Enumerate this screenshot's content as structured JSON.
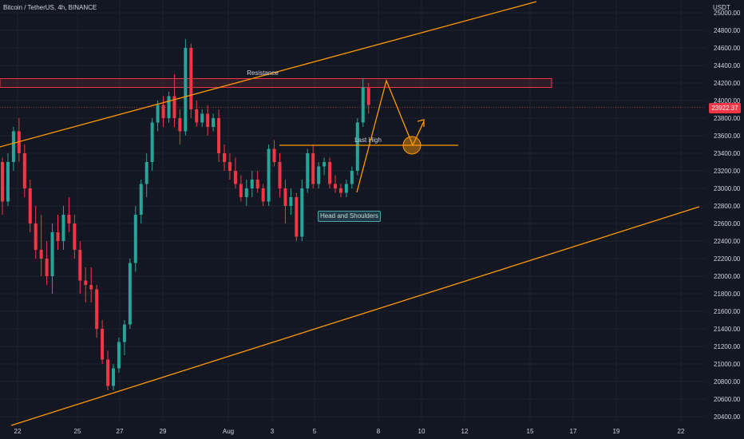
{
  "header": {
    "symbol": "Bitcoin / TetherUS, 4h, BINANCE",
    "currency": "USDT"
  },
  "current_price": "23922.37",
  "colors": {
    "background": "#131722",
    "up": "#26a69a",
    "down": "#f23645",
    "drawing": "#ff9800",
    "resistance": "#f23645"
  },
  "annotations": {
    "resistance": "Resistance",
    "last_high": "Last High",
    "pattern": "Head and Shoulders"
  },
  "chart_data": {
    "type": "candlestick",
    "y_range": [
      20300,
      25100
    ],
    "y_ticks": [
      25000,
      24800,
      24600,
      24400,
      24200,
      24000,
      23800,
      23600,
      23400,
      23200,
      23000,
      22800,
      22600,
      22400,
      22200,
      22000,
      21800,
      21600,
      21400,
      21200,
      21000,
      20800,
      20600,
      20400
    ],
    "x_ticks": [
      "22",
      "25",
      "27",
      "29",
      "Aug",
      "3",
      "5",
      "8",
      "10",
      "12",
      "15",
      "17",
      "19",
      "22"
    ],
    "resistance_zone": [
      24150,
      24250
    ],
    "last_high_level": 23490,
    "current_price": 23922.37,
    "candles": [
      [
        23300,
        23350,
        22700,
        22850
      ],
      [
        22850,
        23400,
        22800,
        23300
      ],
      [
        23300,
        23700,
        23200,
        23650
      ],
      [
        23650,
        23800,
        23300,
        23400
      ],
      [
        23400,
        23500,
        22900,
        23000
      ],
      [
        23000,
        23100,
        22500,
        22600
      ],
      [
        22600,
        22800,
        22200,
        22300
      ],
      [
        22300,
        22700,
        22000,
        22200
      ],
      [
        22200,
        22400,
        21900,
        22000
      ],
      [
        22000,
        22600,
        21800,
        22500
      ],
      [
        22500,
        22700,
        22300,
        22400
      ],
      [
        22400,
        22800,
        22300,
        22700
      ],
      [
        22700,
        22900,
        22500,
        22600
      ],
      [
        22600,
        22700,
        22200,
        22300
      ],
      [
        22300,
        22400,
        21800,
        21950
      ],
      [
        21950,
        22100,
        21700,
        21900
      ],
      [
        21900,
        22100,
        21700,
        21850
      ],
      [
        21850,
        21900,
        21300,
        21400
      ],
      [
        21400,
        21500,
        21000,
        21050
      ],
      [
        21050,
        21150,
        20700,
        20750
      ],
      [
        20750,
        21000,
        20700,
        20950
      ],
      [
        20950,
        21300,
        20900,
        21250
      ],
      [
        21250,
        21500,
        21100,
        21450
      ],
      [
        21450,
        22200,
        21400,
        22150
      ],
      [
        22150,
        22800,
        22050,
        22700
      ],
      [
        22700,
        23100,
        22600,
        23050
      ],
      [
        23050,
        23400,
        22900,
        23300
      ],
      [
        23300,
        23800,
        23200,
        23750
      ],
      [
        23750,
        24000,
        23650,
        23950
      ],
      [
        23950,
        24050,
        23700,
        23800
      ],
      [
        23800,
        24100,
        23750,
        24050
      ],
      [
        24050,
        24300,
        23700,
        23800
      ],
      [
        23800,
        23900,
        23500,
        23650
      ],
      [
        23650,
        24700,
        23600,
        24600
      ],
      [
        24600,
        24650,
        23800,
        23900
      ],
      [
        23900,
        24000,
        23700,
        23750
      ],
      [
        23750,
        23900,
        23700,
        23850
      ],
      [
        23850,
        23950,
        23600,
        23700
      ],
      [
        23700,
        23850,
        23650,
        23800
      ],
      [
        23800,
        23900,
        23300,
        23400
      ],
      [
        23400,
        23500,
        23200,
        23300
      ],
      [
        23300,
        23400,
        23100,
        23200
      ],
      [
        23200,
        23350,
        23000,
        23050
      ],
      [
        23050,
        23150,
        22850,
        22900
      ],
      [
        22900,
        23100,
        22800,
        23000
      ],
      [
        23000,
        23200,
        22900,
        23100
      ],
      [
        23100,
        23200,
        22950,
        23000
      ],
      [
        23000,
        23050,
        22800,
        22850
      ],
      [
        22850,
        23500,
        22800,
        23450
      ],
      [
        23450,
        23550,
        23250,
        23300
      ],
      [
        23300,
        23400,
        22900,
        23000
      ],
      [
        23000,
        23100,
        22600,
        22800
      ],
      [
        22800,
        23000,
        22700,
        22900
      ],
      [
        22900,
        22950,
        22400,
        22450
      ],
      [
        22450,
        23100,
        22400,
        23000
      ],
      [
        23000,
        23450,
        22950,
        23400
      ],
      [
        23400,
        23500,
        23000,
        23050
      ],
      [
        23050,
        23300,
        23000,
        23250
      ],
      [
        23250,
        23350,
        23150,
        23300
      ],
      [
        23300,
        23350,
        23000,
        23050
      ],
      [
        23050,
        23150,
        22950,
        23000
      ],
      [
        23000,
        23050,
        22900,
        22950
      ],
      [
        22950,
        23100,
        22900,
        23050
      ],
      [
        23050,
        23250,
        23000,
        23200
      ],
      [
        23200,
        23800,
        23150,
        23750
      ],
      [
        23750,
        24250,
        23700,
        24150
      ],
      [
        24150,
        24200,
        23850,
        23950
      ]
    ]
  }
}
